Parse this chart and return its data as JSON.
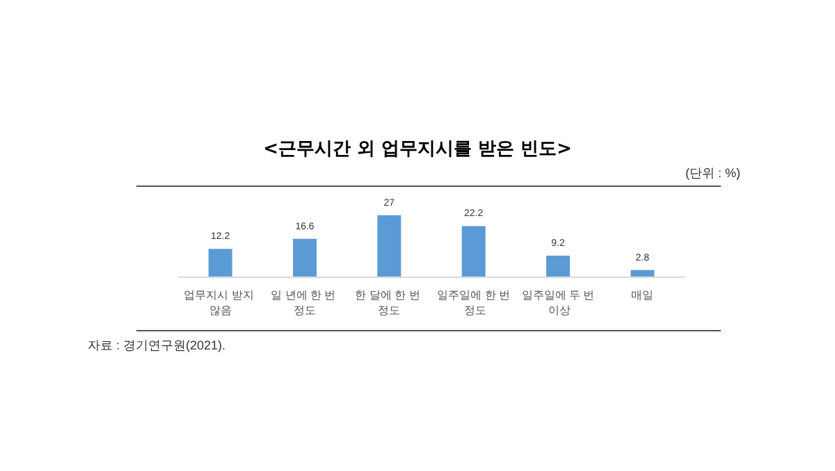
{
  "chart_data": {
    "type": "bar",
    "title": "<근무시간 외 업무지시를 받은 빈도>",
    "categories": [
      "업무지시 받지 않음",
      "일 년에 한 번 정도",
      "한 달에 한 번 정도",
      "일주일에 한 번 정도",
      "일주일에 두 번 이상",
      "매일"
    ],
    "values": [
      12.2,
      16.6,
      27,
      22.2,
      9.2,
      2.8
    ],
    "color": "#5b9bd5",
    "data_labels": true,
    "annotations": [
      "(단위 : %)",
      "자료 : 경기연구원(2021)."
    ]
  }
}
